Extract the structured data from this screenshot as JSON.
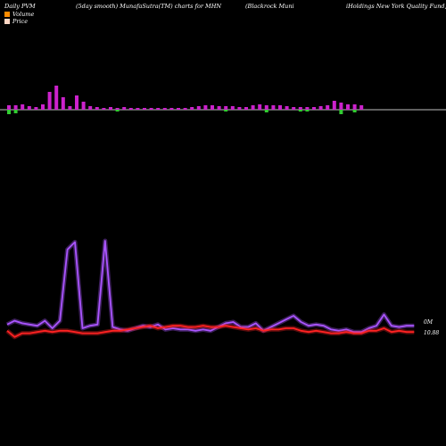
{
  "header": {
    "left": "Daily PVM",
    "mid1": "(5day smooth) MunafaSutra(TM) charts for MHN",
    "mid2": "(Blackrock Muni",
    "right": "iHoldings New York Quality Fund, Inc.)"
  },
  "legend": [
    {
      "label": "Volume",
      "color": "#ff8c00"
    },
    {
      "label": "Price",
      "color": "#ffd7c4"
    }
  ],
  "value_labels": {
    "volume_end": "0M",
    "price_end": "10.88"
  },
  "colors": {
    "background": "#000000",
    "volume_up": "#cc22cc",
    "volume_down": "#33cc33",
    "volume_line": "#aa55ff",
    "price_line": "#ff2222",
    "baseline": "#ffffff"
  },
  "chart_data": {
    "type": "line",
    "title": "Daily PVM (5day smooth) MunafaSutra(TM) charts for MHN",
    "bars": [
      {
        "up": 5,
        "down": 5
      },
      {
        "up": 5,
        "down": 4
      },
      {
        "up": 6,
        "down": 0
      },
      {
        "up": 4,
        "down": 0
      },
      {
        "up": 3,
        "down": 0
      },
      {
        "up": 6,
        "down": 0
      },
      {
        "up": 20,
        "down": 0
      },
      {
        "up": 27,
        "down": 0
      },
      {
        "up": 14,
        "down": 0
      },
      {
        "up": 4,
        "down": 0
      },
      {
        "up": 16,
        "down": 0
      },
      {
        "up": 9,
        "down": 0
      },
      {
        "up": 4,
        "down": 0
      },
      {
        "up": 3,
        "down": 0
      },
      {
        "up": 2,
        "down": 0
      },
      {
        "up": 3,
        "down": 0
      },
      {
        "up": 2,
        "down": 2
      },
      {
        "up": 3,
        "down": 0
      },
      {
        "up": 2,
        "down": 0
      },
      {
        "up": 2,
        "down": 0
      },
      {
        "up": 2,
        "down": 0
      },
      {
        "up": 2,
        "down": 0
      },
      {
        "up": 2,
        "down": 0
      },
      {
        "up": 2,
        "down": 0
      },
      {
        "up": 2,
        "down": 0
      },
      {
        "up": 2,
        "down": 0
      },
      {
        "up": 2,
        "down": 0
      },
      {
        "up": 3,
        "down": 0
      },
      {
        "up": 4,
        "down": 0
      },
      {
        "up": 5,
        "down": 0
      },
      {
        "up": 5,
        "down": 0
      },
      {
        "up": 4,
        "down": 0
      },
      {
        "up": 4,
        "down": 2
      },
      {
        "up": 4,
        "down": 0
      },
      {
        "up": 3,
        "down": 0
      },
      {
        "up": 3,
        "down": 0
      },
      {
        "up": 5,
        "down": 0
      },
      {
        "up": 6,
        "down": 0
      },
      {
        "up": 5,
        "down": 3
      },
      {
        "up": 5,
        "down": 0
      },
      {
        "up": 5,
        "down": 0
      },
      {
        "up": 4,
        "down": 0
      },
      {
        "up": 3,
        "down": 0
      },
      {
        "up": 3,
        "down": 2
      },
      {
        "up": 3,
        "down": 2
      },
      {
        "up": 3,
        "down": 0
      },
      {
        "up": 4,
        "down": 0
      },
      {
        "up": 5,
        "down": 0
      },
      {
        "up": 10,
        "down": 0
      },
      {
        "up": 8,
        "down": 5
      },
      {
        "up": 6,
        "down": 0
      },
      {
        "up": 6,
        "down": 3
      },
      {
        "up": 5,
        "down": 0
      }
    ],
    "volume_line": [
      33,
      36,
      34,
      33,
      32,
      36,
      30,
      36,
      93,
      99,
      30,
      32,
      33,
      100,
      31,
      29,
      28,
      30,
      32,
      31,
      33,
      29,
      30,
      29,
      29,
      28,
      29,
      28,
      31,
      34,
      35,
      31,
      31,
      34,
      28,
      31,
      34,
      37,
      40,
      35,
      32,
      33,
      32,
      29,
      28,
      29,
      27,
      27,
      30,
      32,
      41,
      32,
      31,
      32,
      32
    ],
    "price_line": [
      28,
      23,
      26,
      26,
      27,
      28,
      27,
      28,
      28,
      27,
      26,
      26,
      26,
      27,
      28,
      28,
      29,
      30,
      31,
      32,
      30,
      31,
      32,
      32,
      31,
      31,
      32,
      31,
      31,
      32,
      31,
      30,
      29,
      30,
      28,
      29,
      29,
      30,
      30,
      28,
      27,
      28,
      27,
      26,
      26,
      27,
      26,
      26,
      28,
      28,
      30,
      27,
      28,
      27,
      27
    ]
  }
}
